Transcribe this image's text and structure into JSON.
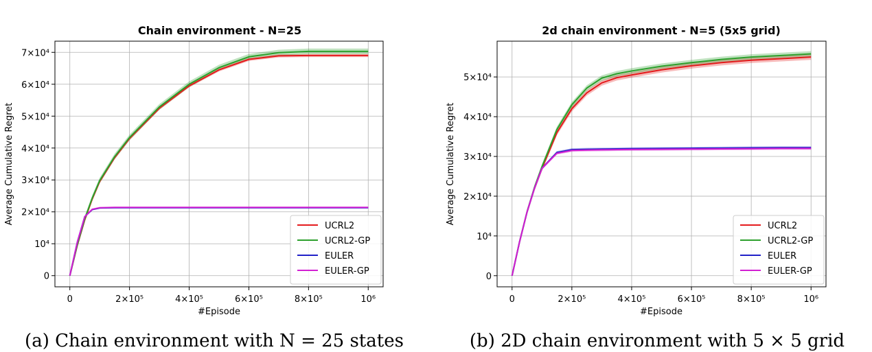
{
  "chart_data": [
    {
      "type": "line",
      "title": "Chain environment - N=25",
      "xlabel": "#Episode",
      "ylabel": "Average Cumulative Regret",
      "caption": "(a) Chain environment with N = 25 states",
      "xlim": [
        -50000,
        1050000
      ],
      "ylim": [
        -3500,
        73500
      ],
      "grid": true,
      "legend": "lower-right",
      "xticks": [
        {
          "value": 0,
          "label": "0"
        },
        {
          "value": 200000,
          "label": "2×10⁵"
        },
        {
          "value": 400000,
          "label": "4×10⁵"
        },
        {
          "value": 600000,
          "label": "6×10⁵"
        },
        {
          "value": 800000,
          "label": "8×10⁵"
        },
        {
          "value": 1000000,
          "label": "10⁶"
        }
      ],
      "yticks": [
        {
          "value": 0,
          "label": "0"
        },
        {
          "value": 10000,
          "label": "10⁴"
        },
        {
          "value": 20000,
          "label": "2×10⁴"
        },
        {
          "value": 30000,
          "label": "3×10⁴"
        },
        {
          "value": 40000,
          "label": "4×10⁴"
        },
        {
          "value": 50000,
          "label": "5×10⁴"
        },
        {
          "value": 60000,
          "label": "6×10⁴"
        },
        {
          "value": 70000,
          "label": "7×10⁴"
        }
      ],
      "x": [
        0,
        25000,
        50000,
        75000,
        100000,
        150000,
        200000,
        300000,
        400000,
        500000,
        600000,
        700000,
        800000,
        900000,
        1000000
      ],
      "series": [
        {
          "name": "UCRL2",
          "color": "#e41a1c",
          "band": 500,
          "values": [
            0,
            9500,
            17500,
            24000,
            29500,
            37000,
            43000,
            52500,
            59500,
            64500,
            67800,
            68900,
            69000,
            69000,
            69000
          ]
        },
        {
          "name": "UCRL2-GP",
          "color": "#2ca02c",
          "band": 900,
          "values": [
            0,
            9700,
            17800,
            24300,
            29800,
            37300,
            43300,
            52900,
            60000,
            65200,
            68600,
            69900,
            70300,
            70300,
            70300
          ]
        },
        {
          "name": "EULER",
          "color": "#1f1fc8",
          "band": 200,
          "values": [
            0,
            10500,
            18500,
            20700,
            21200,
            21300,
            21300,
            21300,
            21300,
            21300,
            21300,
            21300,
            21300,
            21300,
            21300
          ]
        },
        {
          "name": "EULER-GP",
          "color": "#d21fd2",
          "band": 200,
          "values": [
            0,
            10500,
            18500,
            20800,
            21300,
            21400,
            21400,
            21400,
            21400,
            21400,
            21400,
            21400,
            21400,
            21400,
            21400
          ]
        }
      ]
    },
    {
      "type": "line",
      "title": "2d chain environment - N=5 (5x5 grid)",
      "xlabel": "#Episode",
      "ylabel": "Average Cumulative Regret",
      "caption": "(b) 2D chain environment with 5 × 5 grid",
      "xlim": [
        -50000,
        1050000
      ],
      "ylim": [
        -2800,
        59000
      ],
      "grid": true,
      "legend": "lower-right",
      "xticks": [
        {
          "value": 0,
          "label": "0"
        },
        {
          "value": 200000,
          "label": "2×10⁵"
        },
        {
          "value": 400000,
          "label": "4×10⁵"
        },
        {
          "value": 600000,
          "label": "6×10⁵"
        },
        {
          "value": 800000,
          "label": "8×10⁵"
        },
        {
          "value": 1000000,
          "label": "10⁶"
        }
      ],
      "yticks": [
        {
          "value": 0,
          "label": "0"
        },
        {
          "value": 10000,
          "label": "10⁴"
        },
        {
          "value": 20000,
          "label": "2×10⁴"
        },
        {
          "value": 30000,
          "label": "3×10⁴"
        },
        {
          "value": 40000,
          "label": "4×10⁴"
        },
        {
          "value": 50000,
          "label": "5×10⁴"
        }
      ],
      "x": [
        0,
        25000,
        50000,
        75000,
        100000,
        150000,
        200000,
        250000,
        300000,
        350000,
        400000,
        500000,
        600000,
        700000,
        800000,
        900000,
        1000000
      ],
      "series": [
        {
          "name": "UCRL2",
          "color": "#e41a1c",
          "band": 700,
          "values": [
            0,
            8500,
            16000,
            22000,
            27000,
            36000,
            42000,
            46000,
            48500,
            49800,
            50500,
            51800,
            52800,
            53600,
            54200,
            54600,
            55000
          ]
        },
        {
          "name": "UCRL2-GP",
          "color": "#2ca02c",
          "band": 700,
          "values": [
            0,
            8500,
            16000,
            22200,
            27400,
            36800,
            43000,
            47200,
            49700,
            50800,
            51500,
            52700,
            53600,
            54400,
            55000,
            55400,
            55800
          ]
        },
        {
          "name": "EULER",
          "color": "#1f1fc8",
          "band": 350,
          "values": [
            0,
            8500,
            16000,
            22000,
            27000,
            31000,
            31700,
            31800,
            31850,
            31900,
            31950,
            32000,
            32050,
            32100,
            32150,
            32200,
            32200
          ]
        },
        {
          "name": "EULER-GP",
          "color": "#d21fd2",
          "band": 350,
          "values": [
            0,
            8500,
            16000,
            22000,
            27000,
            30800,
            31500,
            31600,
            31650,
            31700,
            31750,
            31800,
            31850,
            31900,
            31950,
            32000,
            32000
          ]
        }
      ]
    }
  ]
}
